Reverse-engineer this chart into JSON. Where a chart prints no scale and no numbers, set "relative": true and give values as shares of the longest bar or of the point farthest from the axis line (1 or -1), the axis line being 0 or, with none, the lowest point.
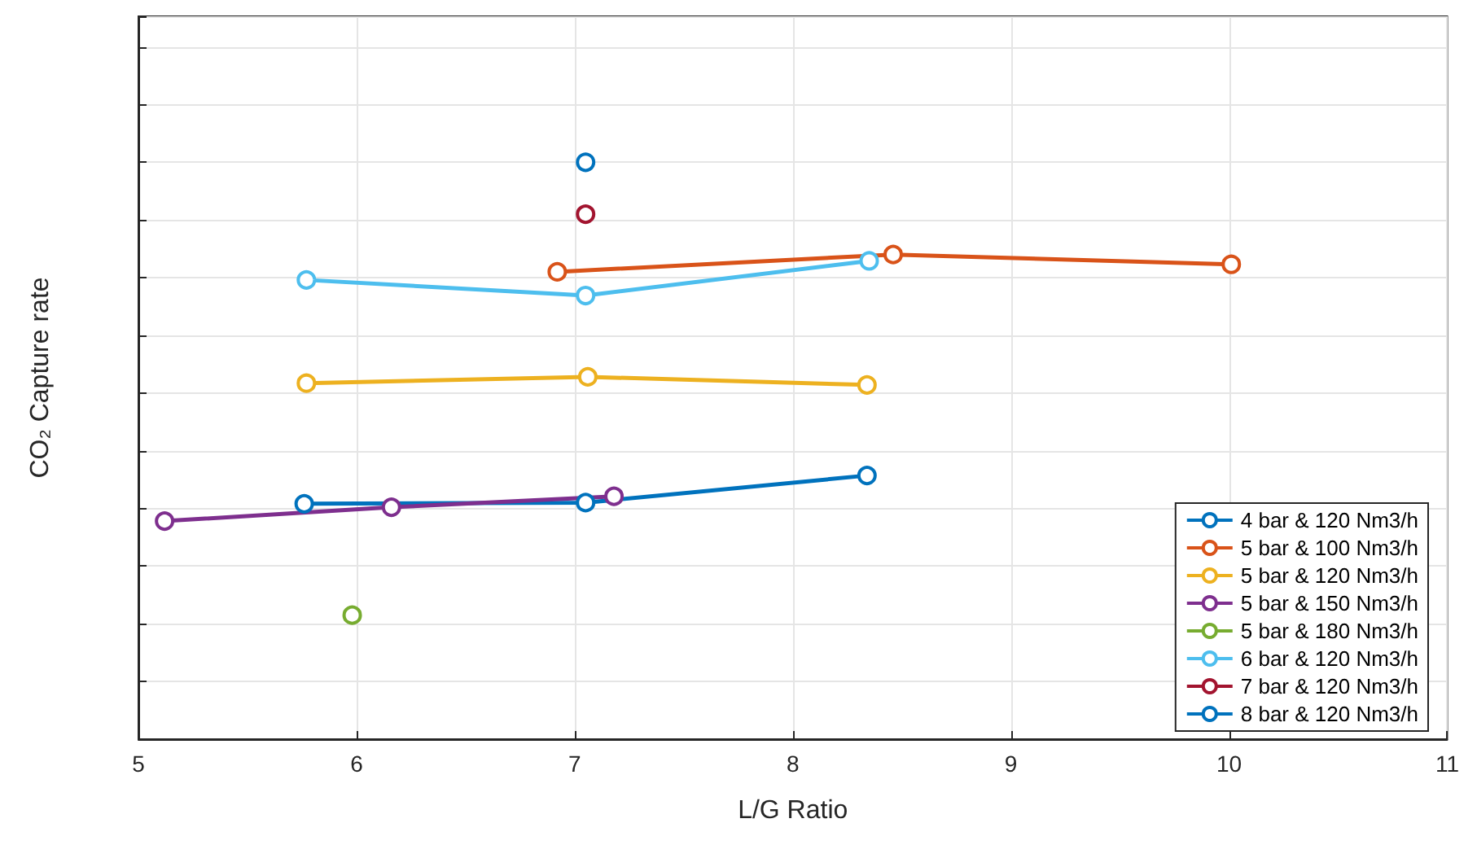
{
  "chart_data": {
    "type": "line",
    "xlabel": "L/G Ratio",
    "ylabel": "CO₂ Capture rate",
    "relative": true,
    "xlim": [
      5,
      11
    ],
    "xticks": [
      5,
      6,
      7,
      8,
      9,
      10,
      11
    ],
    "grid": true,
    "legend": "bottom right",
    "marker": "circle",
    "line_style": "solid",
    "series": [
      {
        "name": "4 bar & 120 Nm3/h",
        "color": "#0072bd",
        "x": [
          5.76,
          7.05,
          8.34
        ],
        "values": [
          0.408,
          0.41,
          0.457
        ]
      },
      {
        "name": "5 bar & 100 Nm3/h",
        "color": "#d95319",
        "x": [
          6.92,
          8.46,
          10.01
        ],
        "values": [
          0.81,
          0.84,
          0.823
        ]
      },
      {
        "name": "5 bar & 120 Nm3/h",
        "color": "#edb120",
        "x": [
          5.77,
          7.06,
          8.34
        ],
        "values": [
          0.617,
          0.628,
          0.614
        ]
      },
      {
        "name": "5 bar & 150 Nm3/h",
        "color": "#7e2f8e",
        "x": [
          5.12,
          6.16,
          7.18
        ],
        "values": [
          0.378,
          0.402,
          0.421
        ]
      },
      {
        "name": "5 bar & 180 Nm3/h",
        "color": "#77ac30",
        "x": [
          5.98
        ],
        "values": [
          0.215
        ]
      },
      {
        "name": "6 bar & 120 Nm3/h",
        "color": "#4dbeee",
        "x": [
          5.77,
          7.05,
          8.35
        ],
        "values": [
          0.796,
          0.769,
          0.829
        ]
      },
      {
        "name": "7 bar & 120 Nm3/h",
        "color": "#a2142f",
        "x": [
          7.05
        ],
        "values": [
          0.91
        ]
      },
      {
        "name": "8 bar & 120 Nm3/h",
        "color": "#0072bd",
        "x": [
          7.05
        ],
        "values": [
          1.0
        ]
      }
    ]
  }
}
